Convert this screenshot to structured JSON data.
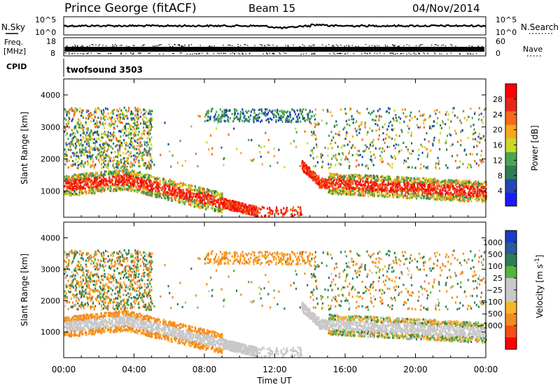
{
  "header": {
    "station": "Prince George (fitACF)",
    "beam": "Beam 15",
    "date": "04/Nov/2014"
  },
  "noise_panel": {
    "left_label": "N.Sky",
    "right_label": "N.Search",
    "ticks_left": [
      "10^5",
      "10^0"
    ],
    "ticks_right": [
      "10^5",
      "10^0"
    ]
  },
  "freq_panel": {
    "left_label_top": "Freq.",
    "left_label_bottom": "[MHz]",
    "ticks_left": [
      "18",
      "8"
    ],
    "right_label": "Nave",
    "ticks_right": [
      "60",
      "0"
    ]
  },
  "cpid_panel": {
    "label": "CPID",
    "program": "twofsound 3503"
  },
  "colors": {
    "power_scale": [
      "#1a1aff",
      "#2246b4",
      "#2f7d55",
      "#4aa552",
      "#c7d925",
      "#f7a61e",
      "#f56a1a",
      "#e8261b",
      "#ff0000"
    ],
    "velocity_scale": [
      "#1a3cc8",
      "#2a5a9a",
      "#2f7d55",
      "#52b43c",
      "#c8c8c8",
      "#c8c8c8",
      "#f5b52a",
      "#f58a1e",
      "#f24e18",
      "#ff0000"
    ]
  },
  "chart_data": [
    {
      "type": "heatmap",
      "title": "",
      "xlabel": "",
      "ylabel": "Slant Range [km]",
      "xlim": [
        "00:00",
        "24:00"
      ],
      "ylim": [
        180,
        4500
      ],
      "x_ticks": [
        "00:00",
        "04:00",
        "08:00",
        "12:00",
        "16:00",
        "20:00",
        "00:00"
      ],
      "y_ticks": [
        1000,
        2000,
        3000,
        4000
      ],
      "colorbar": {
        "label": "Power [dB]",
        "range": [
          0,
          32
        ],
        "ticks": [
          4,
          8,
          12,
          16,
          20,
          24,
          28
        ]
      },
      "features": [
        {
          "t_start": 0,
          "t_end": 4,
          "range_km": [
            900,
            1400
          ],
          "power_db": [
            20,
            30
          ]
        },
        {
          "t_start": 4,
          "t_end": 11,
          "range_km": [
            300,
            1200
          ],
          "power_db": [
            18,
            30
          ]
        },
        {
          "t_start": 14,
          "t_end": 24,
          "range_km": [
            800,
            1300
          ],
          "power_db": [
            16,
            30
          ]
        }
      ]
    },
    {
      "type": "heatmap",
      "title": "",
      "xlabel": "Time UT",
      "ylabel": "Slant Range [km]",
      "xlim": [
        "00:00",
        "24:00"
      ],
      "ylim": [
        180,
        4500
      ],
      "x_ticks": [
        "00:00",
        "04:00",
        "08:00",
        "12:00",
        "16:00",
        "20:00",
        "00:00"
      ],
      "y_ticks": [
        1000,
        2000,
        3000,
        4000
      ],
      "colorbar": {
        "label": "Velocity [m s^-1]",
        "ticks": [
          "1000",
          "500",
          "100",
          "25",
          "−25",
          "−100",
          "−500",
          "−1000"
        ]
      },
      "features": [
        {
          "t_start": 0,
          "t_end": 8,
          "range_km": [
            600,
            1600
          ],
          "velocity_ms": [
            -25,
            25
          ]
        },
        {
          "t_start": 14,
          "t_end": 24,
          "range_km": [
            800,
            1800
          ],
          "velocity_ms": [
            -25,
            25
          ]
        }
      ]
    }
  ]
}
